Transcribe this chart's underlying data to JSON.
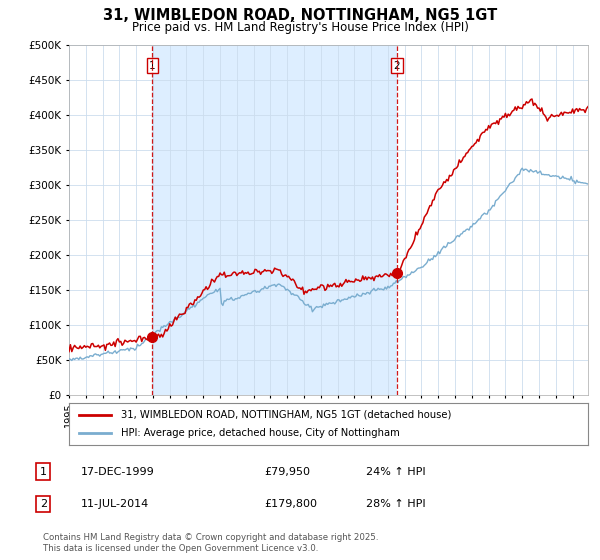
{
  "title": "31, WIMBLEDON ROAD, NOTTINGHAM, NG5 1GT",
  "subtitle": "Price paid vs. HM Land Registry's House Price Index (HPI)",
  "legend_label_red": "31, WIMBLEDON ROAD, NOTTINGHAM, NG5 1GT (detached house)",
  "legend_label_blue": "HPI: Average price, detached house, City of Nottingham",
  "transaction1_label": "1",
  "transaction1_date": "17-DEC-1999",
  "transaction1_price": "£79,950",
  "transaction1_hpi": "24% ↑ HPI",
  "transaction1_year": 1999.97,
  "transaction1_value": 79950,
  "transaction2_label": "2",
  "transaction2_date": "11-JUL-2014",
  "transaction2_price": "£179,800",
  "transaction2_hpi": "28% ↑ HPI",
  "transaction2_year": 2014.53,
  "transaction2_value": 179800,
  "red_line_color": "#cc0000",
  "blue_line_color": "#7aadcf",
  "vline_color": "#cc0000",
  "marker_color": "#cc0000",
  "fill_color": "#ddeeff",
  "ylim": [
    0,
    500000
  ],
  "yticks": [
    0,
    50000,
    100000,
    150000,
    200000,
    250000,
    300000,
    350000,
    400000,
    450000,
    500000
  ],
  "xlim_start": 1995.0,
  "xlim_end": 2025.92,
  "footer": "Contains HM Land Registry data © Crown copyright and database right 2025.\nThis data is licensed under the Open Government Licence v3.0.",
  "background_color": "#ffffff",
  "grid_color": "#ccddee",
  "title_fontsize": 10.5,
  "subtitle_fontsize": 8.5
}
